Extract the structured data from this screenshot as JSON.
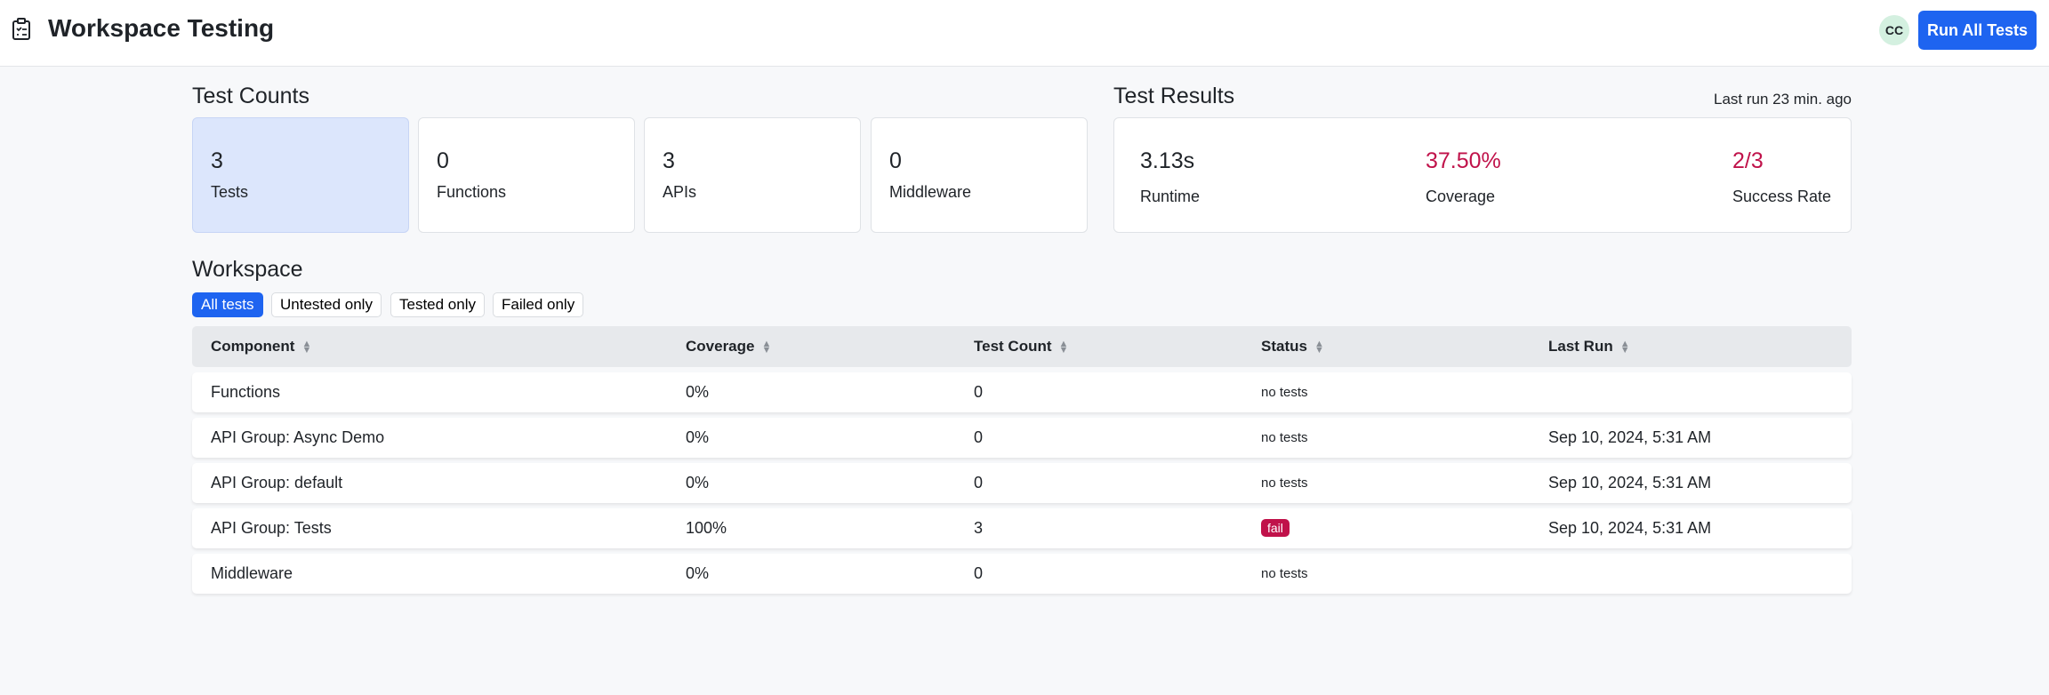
{
  "header": {
    "title": "Workspace Testing",
    "avatar": "CC",
    "run_button": "Run All Tests",
    "icon": "clipboard-list-icon"
  },
  "test_counts": {
    "title": "Test Counts",
    "cards": [
      {
        "value": "3",
        "label": "Tests"
      },
      {
        "value": "0",
        "label": "Functions"
      },
      {
        "value": "3",
        "label": "APIs"
      },
      {
        "value": "0",
        "label": "Middleware"
      }
    ]
  },
  "test_results": {
    "title": "Test Results",
    "last_run": "Last run 23 min. ago",
    "stats": [
      {
        "value": "3.13s",
        "label": "Runtime"
      },
      {
        "value": "37.50%",
        "label": "Coverage"
      },
      {
        "value": "2/3",
        "label": "Success Rate"
      }
    ]
  },
  "workspace": {
    "title": "Workspace",
    "filters": [
      "All tests",
      "Untested only",
      "Tested only",
      "Failed only"
    ],
    "columns": [
      "Component",
      "Coverage",
      "Test Count",
      "Status",
      "Last Run"
    ],
    "rows": [
      {
        "component": "Functions",
        "coverage": "0%",
        "count": "0",
        "status": "no tests",
        "last_run": ""
      },
      {
        "component": "API Group: Async Demo",
        "coverage": "0%",
        "count": "0",
        "status": "no tests",
        "last_run": "Sep 10, 2024, 5:31 AM"
      },
      {
        "component": "API Group: default",
        "coverage": "0%",
        "count": "0",
        "status": "no tests",
        "last_run": "Sep 10, 2024, 5:31 AM"
      },
      {
        "component": "API Group: Tests",
        "coverage": "100%",
        "count": "3",
        "status": "fail",
        "last_run": "Sep 10, 2024, 5:31 AM"
      },
      {
        "component": "Middleware",
        "coverage": "0%",
        "count": "0",
        "status": "no tests",
        "last_run": ""
      }
    ]
  },
  "colors": {
    "accent": "#1e64f0",
    "danger": "#c0124a"
  }
}
